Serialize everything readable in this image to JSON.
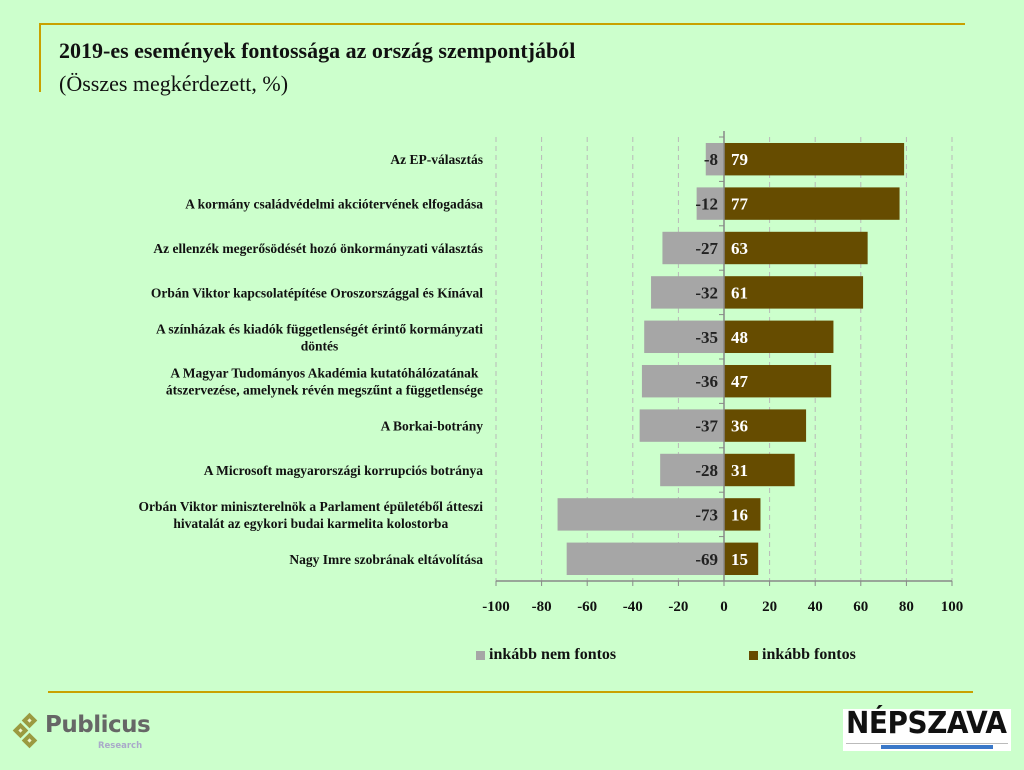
{
  "header": {
    "title": "2019-es események fontossága az ország szempontjából",
    "subtitle": "(Összes megkérdezett, %)"
  },
  "colors": {
    "background": "#ccffcc",
    "frame": "#c9a100",
    "not_important": "#a6a6a6",
    "important": "#664c00",
    "gridline": "#b8b8b8",
    "axis": "#888888"
  },
  "chart_data": {
    "type": "bar",
    "orientation": "horizontal",
    "stacked": "diverging",
    "title": "2019-es események fontossága az ország szempontjából",
    "subtitle": "(Összes megkérdezett, %)",
    "xlabel": "",
    "ylabel": "",
    "xlim": [
      -100,
      100
    ],
    "xticks": [
      "-100",
      "-80",
      "-60",
      "-40",
      "-20",
      "0",
      "20",
      "40",
      "60",
      "80",
      "100"
    ],
    "xtick_values": [
      -100,
      -80,
      -60,
      -40,
      -20,
      0,
      20,
      40,
      60,
      80,
      100
    ],
    "grid": "vertical dashed",
    "legend_position": "bottom",
    "categories": [
      [
        "Az EP-választás"
      ],
      [
        "A kormány családvédelmi akciótervének elfogadása"
      ],
      [
        "Az ellenzék megerősödését hozó önkormányzati választás"
      ],
      [
        "Orbán Viktor kapcsolatépítése Oroszországgal és Kínával"
      ],
      [
        "A színházak és kiadók függetlenségét érintő kormányzati",
        "döntés"
      ],
      [
        "A Magyar Tudományos Akadémia kutatóhálózatának",
        "átszervezése, amelynek révén megszűnt a függetlensége"
      ],
      [
        "A Borkai-botrány"
      ],
      [
        "A Microsoft magyarországi korrupciós botránya"
      ],
      [
        "Orbán Viktor miniszterelnök a Parlament épületéből átteszi",
        "hivatalát az egykori budai karmelita kolostorba"
      ],
      [
        "Nagy Imre szobrának eltávolítása"
      ]
    ],
    "series": [
      {
        "name": "inkább nem fontos",
        "color": "#a6a6a6",
        "values": [
          -8,
          -12,
          -27,
          -32,
          -35,
          -36,
          -37,
          -28,
          -73,
          -69
        ],
        "labels": [
          "-8",
          "-12",
          "-27",
          "-32",
          "-35",
          "-36",
          "-37",
          "-28",
          "-73",
          "-69"
        ]
      },
      {
        "name": "inkább fontos",
        "color": "#664c00",
        "values": [
          79,
          77,
          63,
          61,
          48,
          47,
          36,
          31,
          16,
          15
        ],
        "labels": [
          "79",
          "77",
          "63",
          "61",
          "48",
          "47",
          "36",
          "31",
          "16",
          "15"
        ]
      }
    ]
  },
  "legend": [
    {
      "label": "inkább nem fontos",
      "color": "#a6a6a6"
    },
    {
      "label": "inkább fontos",
      "color": "#664c00"
    }
  ],
  "logos": {
    "publicus": {
      "name": "Publicus",
      "sub": "Research"
    },
    "nepszava": {
      "name": "NÉPSZAVA"
    }
  }
}
